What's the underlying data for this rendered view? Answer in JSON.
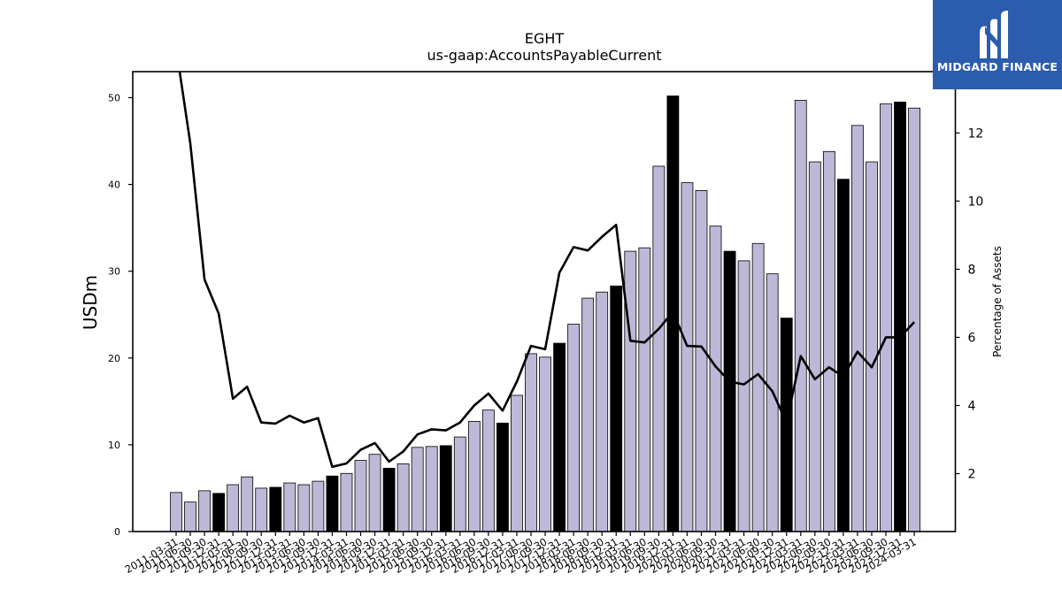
{
  "chart_data": {
    "type": "bar",
    "title": "EGHT",
    "subtitle": "us-gaap:AccountsPayableCurrent",
    "ylabel": "USDm",
    "y2label": "Percentage of Assets",
    "ylim": [
      0,
      53
    ],
    "y2lim": [
      0.3,
      13.8
    ],
    "yticks": [
      0,
      10,
      20,
      30,
      40,
      50
    ],
    "y2ticks": [
      2,
      4,
      6,
      8,
      10,
      12
    ],
    "grid": false,
    "colors": {
      "bar": "#bcb9d8",
      "bar_highlight": "#000000",
      "line": "#000000"
    },
    "categories": [
      "2011-03-31",
      "2011-06-30",
      "2011-09-30",
      "2011-12-31",
      "2012-03-31",
      "2012-06-30",
      "2012-09-30",
      "2012-12-31",
      "2013-03-31",
      "2013-06-30",
      "2013-09-30",
      "2013-12-31",
      "2014-03-31",
      "2014-06-30",
      "2014-09-30",
      "2014-12-31",
      "2015-03-31",
      "2015-06-30",
      "2015-09-30",
      "2015-12-31",
      "2016-03-31",
      "2016-06-30",
      "2016-09-30",
      "2016-12-31",
      "2017-03-31",
      "2017-06-30",
      "2017-09-30",
      "2017-12-31",
      "2018-03-31",
      "2018-06-30",
      "2018-09-30",
      "2018-12-31",
      "2019-03-31",
      "2019-06-30",
      "2019-09-30",
      "2019-12-31",
      "2020-03-31",
      "2020-06-30",
      "2020-09-30",
      "2020-12-31",
      "2021-03-31",
      "2021-06-30",
      "2021-09-30",
      "2021-12-31",
      "2022-03-31",
      "2022-06-30",
      "2022-09-30",
      "2022-12-31",
      "2023-03-31",
      "2023-06-30",
      "2023-09-30",
      "2023-12-31",
      "2024-03-31"
    ],
    "series": [
      {
        "kind": "bar",
        "values": [
          4.5,
          3.4,
          4.7,
          4.4,
          5.4,
          6.3,
          5.0,
          5.1,
          5.6,
          5.4,
          5.8,
          6.4,
          6.7,
          8.2,
          8.9,
          7.3,
          7.8,
          9.7,
          9.8,
          9.9,
          10.9,
          12.7,
          14.0,
          12.5,
          15.7,
          20.5,
          20.1,
          21.7,
          23.9,
          26.9,
          27.6,
          28.3,
          32.3,
          32.7,
          42.1,
          50.2,
          40.2,
          39.3,
          35.2,
          32.3,
          31.2,
          33.2,
          29.7,
          24.6,
          49.7,
          42.6,
          43.8,
          40.6,
          46.8,
          42.6,
          49.3,
          49.5,
          48.8
        ],
        "highlight": [
          false,
          false,
          false,
          true,
          false,
          false,
          false,
          true,
          false,
          false,
          false,
          true,
          false,
          false,
          false,
          true,
          false,
          false,
          false,
          true,
          false,
          false,
          false,
          true,
          false,
          false,
          false,
          true,
          false,
          false,
          false,
          true,
          false,
          false,
          false,
          true,
          false,
          false,
          false,
          true,
          false,
          false,
          false,
          true,
          false,
          false,
          false,
          true,
          false,
          false,
          false,
          true,
          false
        ]
      },
      {
        "kind": "line",
        "axis": "right",
        "values": [
          14.5,
          11.7,
          7.7,
          6.7,
          4.2,
          4.55,
          3.5,
          3.47,
          3.7,
          3.5,
          3.63,
          2.2,
          2.3,
          2.7,
          2.9,
          2.35,
          2.65,
          3.15,
          3.3,
          3.27,
          3.5,
          4.0,
          4.35,
          3.85,
          4.7,
          5.75,
          5.65,
          7.9,
          8.65,
          8.55,
          8.95,
          9.3,
          5.9,
          5.85,
          6.25,
          6.75,
          5.75,
          5.73,
          5.15,
          4.7,
          4.62,
          4.92,
          4.42,
          3.5,
          5.45,
          4.77,
          5.12,
          4.85,
          5.58,
          5.12,
          6.0,
          6.0,
          6.45
        ]
      }
    ]
  },
  "logo": {
    "text": "MIDGARD FINANCE",
    "icon": "midgard-finance-logo-icon"
  }
}
